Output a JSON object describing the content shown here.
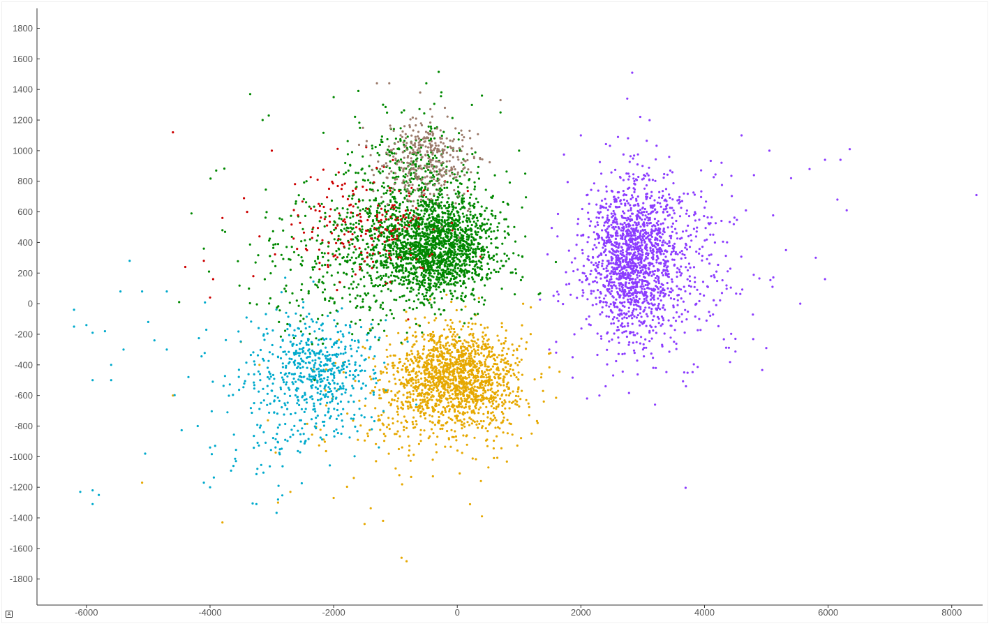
{
  "chart_data": {
    "type": "scatter",
    "title": "",
    "xlabel": "",
    "ylabel": "",
    "xlim": [
      -6800,
      8500
    ],
    "ylim": [
      -1970,
      1930
    ],
    "x_ticks": [
      -6000,
      -4000,
      -2000,
      0,
      2000,
      4000,
      6000,
      8000
    ],
    "y_ticks": [
      1800,
      1600,
      1400,
      1200,
      1000,
      800,
      600,
      400,
      200,
      0,
      -200,
      -400,
      -600,
      -800,
      -1000,
      -1200,
      -1400,
      -1600,
      -1800
    ],
    "x_tick_labels": [
      "-6000",
      "-4000",
      "-2000",
      "0",
      "2000",
      "4000",
      "6000",
      "8000"
    ],
    "y_tick_labels": [
      "1800",
      "1600",
      "1400",
      "1200",
      "1000",
      "800",
      "600",
      "400",
      "200",
      "0",
      "-200",
      "-400",
      "-600",
      "-800",
      "-1000",
      "-1200",
      "-1400",
      "-1600",
      "-1800"
    ],
    "grid": false,
    "legend": "none",
    "series": [
      {
        "color": "#e6a800",
        "clusters": [
          {
            "cx": 0,
            "cy": -470,
            "sx": 480,
            "sy": 160,
            "n": 1400
          },
          {
            "cx": -600,
            "cy": -700,
            "sx": 800,
            "sy": 240,
            "n": 300
          }
        ],
        "outliers": [
          [
            -5100,
            -1170
          ],
          [
            -3800,
            -1430
          ],
          [
            -2900,
            -1300
          ],
          [
            -1500,
            -1440
          ],
          [
            -1200,
            -1420
          ],
          [
            400,
            -1390
          ],
          [
            -2700,
            -1230
          ],
          [
            -2000,
            -1270
          ],
          [
            1300,
            -780
          ],
          [
            1400,
            -640
          ],
          [
            -3200,
            -400
          ],
          [
            -3500,
            -250
          ],
          [
            -4600,
            -600
          ]
        ]
      },
      {
        "color": "#00aacc",
        "clusters": [
          {
            "cx": -2200,
            "cy": -420,
            "sx": 420,
            "sy": 170,
            "n": 450
          },
          {
            "cx": -2800,
            "cy": -650,
            "sx": 700,
            "sy": 280,
            "n": 200
          }
        ],
        "outliers": [
          [
            -6200,
            -40
          ],
          [
            -6200,
            -150
          ],
          [
            -6000,
            -140
          ],
          [
            -5900,
            -190
          ],
          [
            -5700,
            -180
          ],
          [
            -5450,
            80
          ],
          [
            -5300,
            280
          ],
          [
            -5100,
            80
          ],
          [
            -4700,
            80
          ],
          [
            -5600,
            -500
          ],
          [
            -5600,
            -400
          ],
          [
            -5400,
            -300
          ],
          [
            -5000,
            -120
          ],
          [
            -4900,
            -240
          ],
          [
            -6100,
            -1230
          ],
          [
            -5900,
            -1220
          ],
          [
            -5800,
            -1250
          ],
          [
            -5900,
            -1310
          ],
          [
            -5050,
            -980
          ],
          [
            -4350,
            -480
          ],
          [
            -4100,
            -1170
          ],
          [
            -4000,
            -1200
          ],
          [
            -3250,
            -1310
          ],
          [
            -2900,
            -1280
          ],
          [
            -4200,
            -800
          ],
          [
            -4000,
            -940
          ],
          [
            -4700,
            -300
          ],
          [
            -5900,
            -500
          ]
        ]
      },
      {
        "color": "#008800",
        "clusters": [
          {
            "cx": -300,
            "cy": 380,
            "sx": 480,
            "sy": 170,
            "n": 1600
          },
          {
            "cx": -1000,
            "cy": 400,
            "sx": 650,
            "sy": 240,
            "n": 450
          },
          {
            "cx": -700,
            "cy": 900,
            "sx": 500,
            "sy": 170,
            "n": 250
          },
          {
            "cx": -2100,
            "cy": 250,
            "sx": 700,
            "sy": 260,
            "n": 250
          }
        ],
        "outliers": [
          [
            -3350,
            1370
          ],
          [
            -3150,
            1200
          ],
          [
            -3050,
            1230
          ],
          [
            -3900,
            870
          ],
          [
            -4300,
            590
          ],
          [
            -1600,
            1390
          ],
          [
            -1200,
            1300
          ],
          [
            -900,
            1250
          ],
          [
            -500,
            1440
          ],
          [
            400,
            1360
          ],
          [
            700,
            1250
          ],
          [
            1100,
            850
          ],
          [
            1000,
            1000
          ],
          [
            -2000,
            1350
          ],
          [
            -4100,
            360
          ],
          [
            -4500,
            10
          ],
          [
            -3800,
            480
          ]
        ]
      },
      {
        "color": "#cc0000",
        "clusters": [
          {
            "cx": -1500,
            "cy": 520,
            "sx": 650,
            "sy": 180,
            "n": 200
          }
        ],
        "outliers": [
          [
            -4600,
            1120
          ],
          [
            -4400,
            240
          ],
          [
            -4100,
            280
          ],
          [
            -4000,
            40
          ],
          [
            -3950,
            160
          ],
          [
            -3800,
            560
          ],
          [
            -3400,
            600
          ],
          [
            -3300,
            180
          ],
          [
            -3000,
            1000
          ],
          [
            -3200,
            440
          ]
        ]
      },
      {
        "color": "#9b7b6b",
        "clusters": [
          {
            "cx": -500,
            "cy": 950,
            "sx": 380,
            "sy": 140,
            "n": 350
          }
        ],
        "outliers": [
          [
            -1300,
            1440
          ],
          [
            -1100,
            1440
          ],
          [
            -600,
            1380
          ],
          [
            700,
            1330
          ],
          [
            -200,
            1280
          ],
          [
            200,
            1130
          ]
        ]
      },
      {
        "color": "#8c3cff",
        "clusters": [
          {
            "cx": 2800,
            "cy": 300,
            "sx": 350,
            "sy": 250,
            "n": 1300
          },
          {
            "cx": 3300,
            "cy": 230,
            "sx": 650,
            "sy": 320,
            "n": 450
          }
        ],
        "outliers": [
          [
            2830,
            1510
          ],
          [
            2750,
            1340
          ],
          [
            4600,
            1100
          ],
          [
            5050,
            1000
          ],
          [
            6350,
            1010
          ],
          [
            6200,
            940
          ],
          [
            5950,
            940
          ],
          [
            5700,
            880
          ],
          [
            5400,
            820
          ],
          [
            4800,
            840
          ],
          [
            6150,
            680
          ],
          [
            6300,
            610
          ],
          [
            8400,
            710
          ],
          [
            5800,
            300
          ],
          [
            5950,
            160
          ],
          [
            5100,
            110
          ],
          [
            5000,
            -290
          ],
          [
            4500,
            -230
          ],
          [
            3200,
            -660
          ],
          [
            3700,
            -540
          ],
          [
            2300,
            -600
          ],
          [
            2100,
            -620
          ],
          [
            1600,
            -320
          ],
          [
            1600,
            -250
          ],
          [
            2600,
            1090
          ],
          [
            2000,
            1100
          ],
          [
            5550,
            0
          ]
        ]
      }
    ]
  }
}
